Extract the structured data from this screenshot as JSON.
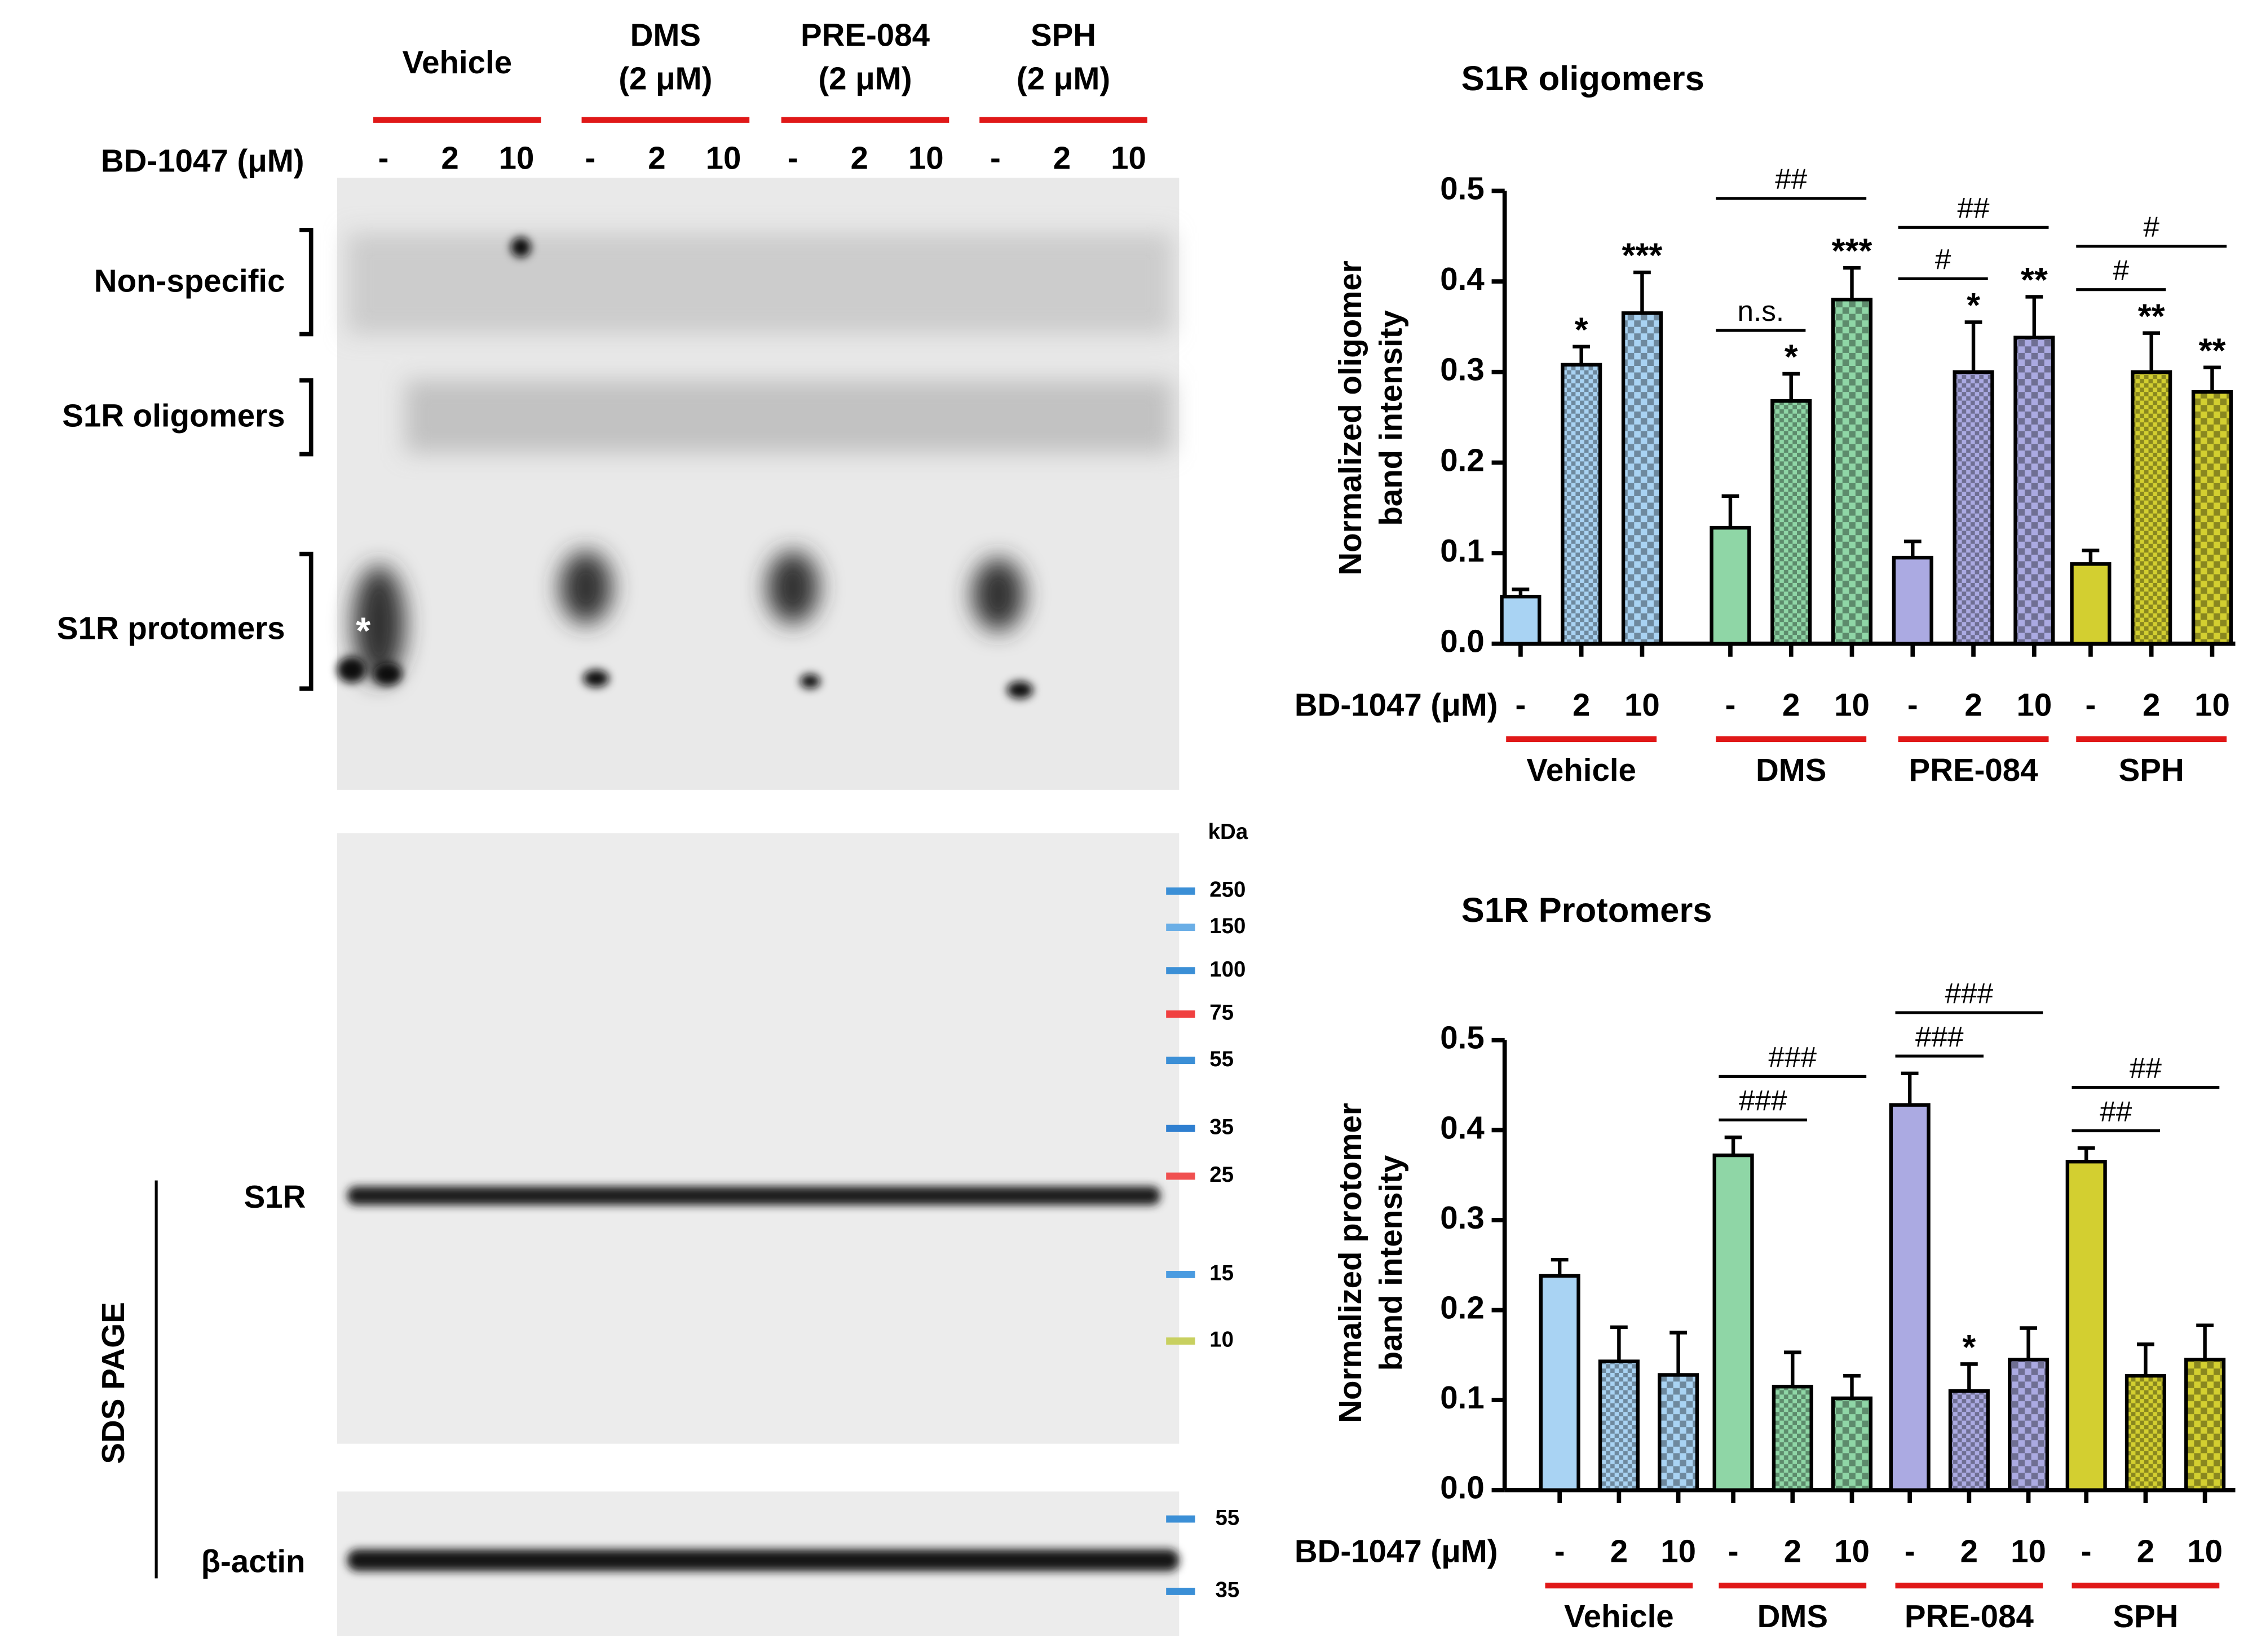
{
  "blot": {
    "groups": [
      {
        "name": "Vehicle"
      },
      {
        "name": "DMS",
        "conc": "(2 μM)"
      },
      {
        "name": "PRE-084",
        "conc": "(2 μM)"
      },
      {
        "name": "SPH",
        "conc": "(2 μM)"
      }
    ],
    "bd_label": "BD-1047 (μM)",
    "doses": [
      "-",
      "2",
      "10"
    ],
    "bands": [
      "Non-specific",
      "S1R oligomers",
      "S1R protomers"
    ],
    "kda": "kDa",
    "markers": [
      250,
      150,
      100,
      75,
      55,
      35,
      25,
      15,
      10
    ],
    "marker_colors": [
      "#3b8fd6",
      "#6aaee6",
      "#3b8fd6",
      "#f04040",
      "#3b8fd6",
      "#2f7fd0",
      "#f05050",
      "#4a9be0",
      "#c8d060"
    ],
    "markers2": [
      55,
      35
    ],
    "marker2_colors": [
      "#3b8fd6",
      "#3b8fd6"
    ],
    "s1r": "S1R",
    "actin": "β-actin",
    "sds": "SDS PAGE"
  },
  "chart_data": [
    {
      "type": "bar",
      "title": "S1R oligomers",
      "ylabel": [
        "Normalized oligomer",
        "band intensity"
      ],
      "xlabel": "BD-1047 (μM)",
      "groups": [
        "Vehicle",
        "DMS",
        "PRE-084",
        "SPH"
      ],
      "doses": [
        "-",
        "2",
        "10"
      ],
      "colors": [
        "#a9d3f3",
        "#8fd6a6",
        "#abaae2",
        "#d3cf30"
      ],
      "values": [
        0.052,
        0.308,
        0.365,
        0.128,
        0.268,
        0.38,
        0.095,
        0.3,
        0.338,
        0.088,
        0.3,
        0.278
      ],
      "errors": [
        0.008,
        0.02,
        0.045,
        0.035,
        0.03,
        0.035,
        0.018,
        0.055,
        0.045,
        0.015,
        0.043,
        0.027
      ],
      "stars": [
        null,
        "*",
        "***",
        null,
        "*",
        "***",
        null,
        "*",
        "**",
        null,
        "**",
        "**"
      ],
      "comparisons": [
        {
          "from": 3,
          "to": 5,
          "text": "##"
        },
        {
          "from": 3,
          "to": 4,
          "text": "n.s."
        },
        {
          "from": 6,
          "to": 8,
          "text": "##"
        },
        {
          "from": 6,
          "to": 7,
          "text": "#"
        },
        {
          "from": 9,
          "to": 11,
          "text": "#"
        },
        {
          "from": 9,
          "to": 10,
          "text": "#"
        }
      ],
      "ylim": [
        0,
        0.5
      ],
      "yticks": [
        {
          "value": 0,
          "label": "0.0"
        },
        0.1,
        0.2,
        0.3,
        0.4,
        0.5
      ]
    },
    {
      "type": "bar",
      "title": "S1R Protomers",
      "ylabel": [
        "Normalized protomer",
        "band intensity"
      ],
      "xlabel": "BD-1047 (μM)",
      "groups": [
        "Vehicle",
        "DMS",
        "PRE-084",
        "SPH"
      ],
      "doses": [
        "-",
        "2",
        "10"
      ],
      "colors": [
        "#a9d3f3",
        "#8fd6a6",
        "#abaae2",
        "#d3cf30"
      ],
      "values": [
        0.238,
        0.143,
        0.128,
        0.372,
        0.115,
        0.102,
        0.428,
        0.11,
        0.145,
        0.365,
        0.127,
        0.145
      ],
      "errors": [
        0.018,
        0.038,
        0.047,
        0.02,
        0.038,
        0.025,
        0.035,
        0.03,
        0.035,
        0.015,
        0.035,
        0.038
      ],
      "stars": [
        null,
        null,
        null,
        null,
        null,
        null,
        null,
        "*",
        null,
        null,
        null,
        null
      ],
      "comparisons": [
        {
          "from": 3,
          "to": 5,
          "text": "###"
        },
        {
          "from": 3,
          "to": 4,
          "text": "###"
        },
        {
          "from": 6,
          "to": 8,
          "text": "###"
        },
        {
          "from": 6,
          "to": 7,
          "text": "###"
        },
        {
          "from": 9,
          "to": 11,
          "text": "##"
        },
        {
          "from": 9,
          "to": 10,
          "text": "##"
        }
      ],
      "ylim": [
        0,
        0.5
      ],
      "yticks": [
        {
          "value": 0,
          "label": "0.0"
        },
        0.1,
        0.2,
        0.3,
        0.4,
        0.5
      ]
    }
  ]
}
